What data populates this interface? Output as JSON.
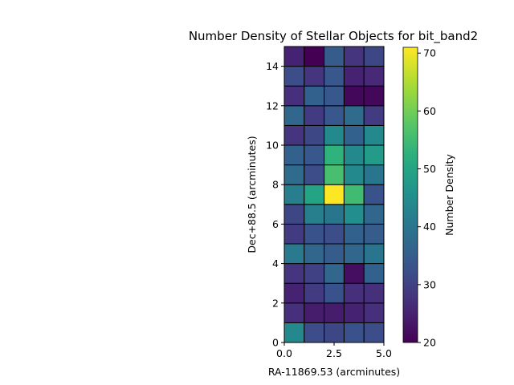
{
  "chart_data": {
    "type": "heatmap",
    "title": "Number Density of Stellar Objects for bit_band2",
    "xlabel": "RA-11869.53 (arcminutes)",
    "ylabel": "Dec+88.5 (arcminutes)",
    "xlim": [
      0.0,
      5.0
    ],
    "ylim": [
      0,
      15
    ],
    "x_ticks": [
      "0.0",
      "2.5",
      "5.0"
    ],
    "y_ticks": [
      "0",
      "2",
      "4",
      "6",
      "8",
      "10",
      "12",
      "14"
    ],
    "colorbar": {
      "label": "Number Density",
      "range": [
        20,
        71
      ],
      "ticks": [
        "20",
        "30",
        "40",
        "50",
        "60",
        "70"
      ],
      "colormap": "viridis"
    },
    "x_bin_edges": [
      0,
      1,
      2,
      3,
      4,
      5
    ],
    "y_bin_edges": [
      0,
      1,
      2,
      3,
      4,
      5,
      6,
      7,
      8,
      9,
      10,
      11,
      12,
      13,
      14,
      15
    ],
    "values": [
      [
        44,
        32,
        31,
        33,
        32
      ],
      [
        27,
        24,
        24,
        25,
        27
      ],
      [
        25,
        29,
        33,
        27,
        27
      ],
      [
        28,
        30,
        37,
        22,
        36
      ],
      [
        41,
        37,
        35,
        37,
        40
      ],
      [
        29,
        33,
        32,
        36,
        35
      ],
      [
        31,
        42,
        40,
        45,
        37
      ],
      [
        42,
        50,
        71,
        55,
        33
      ],
      [
        38,
        32,
        56,
        44,
        40
      ],
      [
        36,
        34,
        53,
        44,
        48
      ],
      [
        28,
        31,
        44,
        36,
        44
      ],
      [
        37,
        29,
        34,
        38,
        29
      ],
      [
        27,
        36,
        34,
        21,
        21
      ],
      [
        32,
        28,
        34,
        25,
        26
      ],
      [
        25,
        20,
        35,
        28,
        31
      ]
    ]
  }
}
